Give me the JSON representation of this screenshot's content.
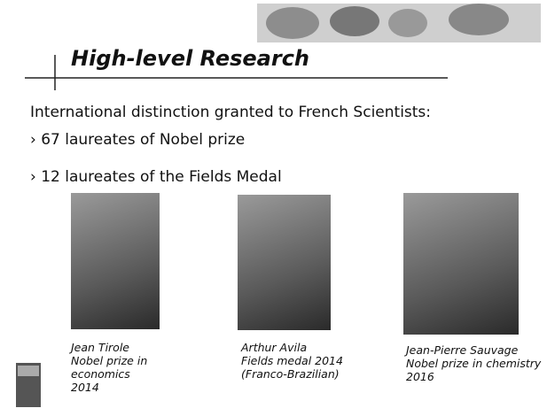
{
  "header": {
    "title": "High-level Research"
  },
  "intro": "International distinction granted to French Scientists:",
  "bullets": [
    "67 laureates of Nobel prize",
    "12 laureates of the Fields Medal"
  ],
  "laureates": [
    {
      "lines": [
        "Jean Tirole",
        "Nobel prize in",
        "economics",
        "2014"
      ]
    },
    {
      "lines": [
        "Arthur Avila",
        "Fields medal 2014",
        "(Franco-Brazilian)"
      ]
    },
    {
      "lines": [
        "Jean-Pierre Sauvage",
        "Nobel prize in chemistry",
        "2016"
      ]
    }
  ]
}
